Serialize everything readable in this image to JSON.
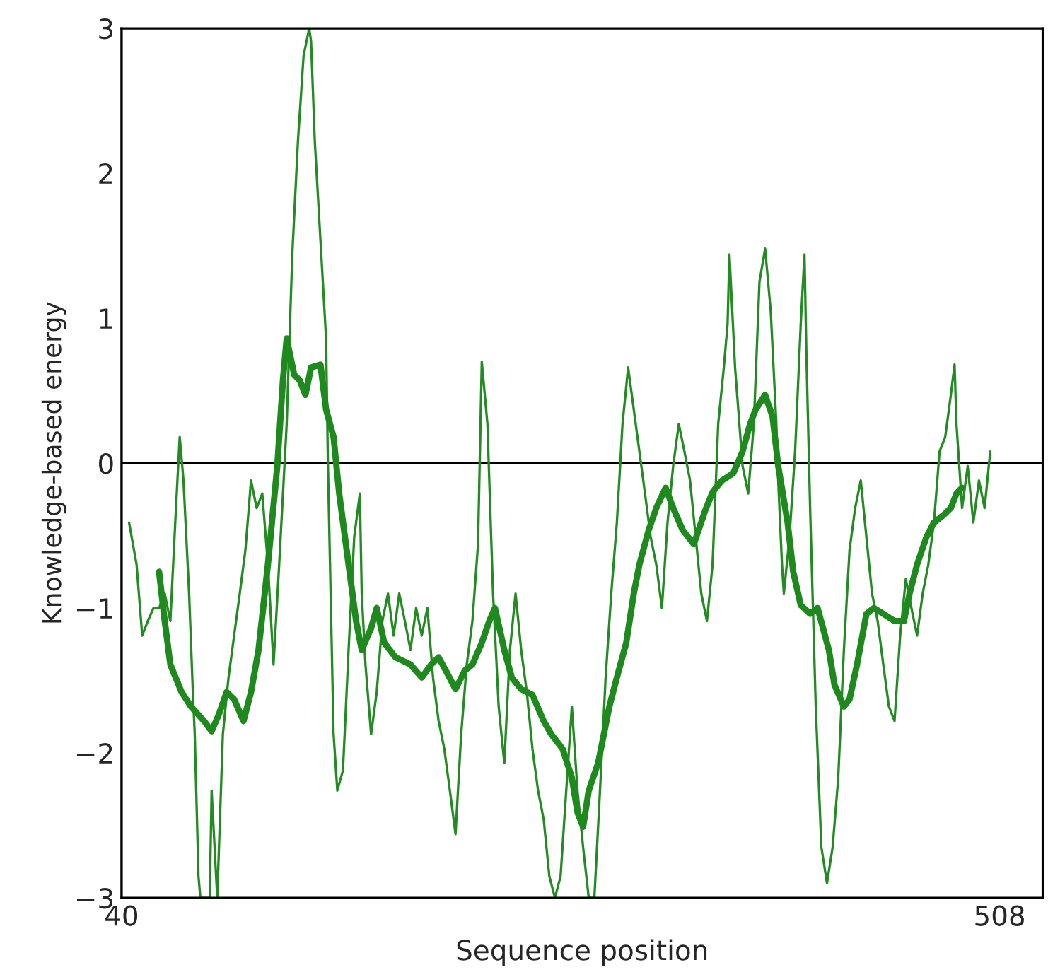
{
  "chart_data": {
    "type": "line",
    "xlabel": "Sequence position",
    "ylabel": "Knowledge-based energy",
    "xlim": [
      40,
      531
    ],
    "ylim": [
      -3,
      3
    ],
    "xticks": [
      40,
      508
    ],
    "yticks": [
      {
        "value": -3,
        "label": "−3"
      },
      {
        "value": -2,
        "label": "−2"
      },
      {
        "value": -1,
        "label": "−1"
      },
      0,
      1,
      2,
      3
    ],
    "grid": false,
    "marker": "none",
    "line_style": "solid",
    "ref_lines": [
      {
        "axis": "y",
        "value": 0,
        "color": "#000000"
      }
    ],
    "series": [
      {
        "color": "#228b22",
        "x": [
          44,
          48,
          51,
          54,
          57,
          60,
          63,
          66,
          69,
          71,
          73,
          76,
          78,
          79,
          81,
          82,
          87,
          88,
          91,
          94,
          97,
          100,
          103,
          106,
          109,
          112,
          115,
          118,
          121,
          124,
          128,
          131,
          134,
          137,
          140,
          141,
          143,
          146,
          149,
          150,
          153,
          155,
          158,
          161,
          164,
          167,
          168,
          170,
          173,
          176,
          179,
          182,
          185,
          188,
          191,
          194,
          197,
          200,
          203,
          206,
          209,
          212,
          215,
          218,
          221,
          224,
          227,
          230,
          232,
          235,
          238,
          241,
          244,
          247,
          250,
          253,
          256,
          259,
          262,
          265,
          268,
          271,
          274,
          277,
          280,
          283,
          286,
          289,
          292,
          295,
          298,
          301,
          304,
          307,
          310,
          313,
          316,
          319,
          322,
          325,
          328,
          331,
          334,
          337,
          340,
          343,
          346,
          349,
          352,
          355,
          358,
          361,
          363,
          364,
          367,
          371,
          374,
          377,
          380,
          383,
          386,
          389,
          390,
          392,
          393,
          396,
          399,
          402,
          404,
          405,
          407,
          410,
          413,
          416,
          419,
          422,
          425,
          428,
          431,
          434,
          437,
          440,
          443,
          446,
          449,
          452,
          455,
          458,
          461,
          464,
          467,
          470,
          473,
          476,
          479,
          482,
          484,
          485,
          488,
          491,
          494,
          497,
          500,
          503
        ],
        "values": [
          -0.41,
          -0.7,
          -1.19,
          -1.09,
          -1.0,
          -1.0,
          -0.9,
          -1.09,
          -0.31,
          0.18,
          -0.12,
          -0.9,
          -1.58,
          -1.87,
          -2.85,
          -3,
          -3,
          -2.26,
          -3,
          -1.87,
          -1.48,
          -1.19,
          -0.9,
          -0.6,
          -0.12,
          -0.31,
          -0.21,
          -0.7,
          -1.39,
          -0.7,
          0.27,
          1.44,
          2.22,
          2.81,
          3,
          2.91,
          2.22,
          1.54,
          0.86,
          -0.02,
          -1.87,
          -2.26,
          -2.12,
          -1.29,
          -0.51,
          -0.21,
          -0.9,
          -1.39,
          -1.87,
          -1.58,
          -1.09,
          -0.9,
          -1.19,
          -0.9,
          -1.09,
          -1.29,
          -1.0,
          -1.19,
          -1.0,
          -1.48,
          -1.78,
          -1.97,
          -2.26,
          -2.56,
          -1.87,
          -1.39,
          -1.09,
          -0.56,
          0.7,
          0.27,
          -0.9,
          -1.68,
          -2.07,
          -1.29,
          -0.9,
          -1.29,
          -1.58,
          -1.97,
          -2.26,
          -2.46,
          -2.85,
          -3,
          -2.85,
          -2.26,
          -1.68,
          -2.26,
          -2.65,
          -3,
          -3,
          -2.26,
          -1.48,
          -0.9,
          -0.41,
          0.27,
          0.66,
          0.37,
          0.08,
          -0.21,
          -0.51,
          -0.7,
          -1.0,
          -0.41,
          -0.02,
          0.27,
          0.08,
          -0.12,
          -0.51,
          -0.9,
          -1.09,
          -0.7,
          0.27,
          0.66,
          0.96,
          1.44,
          0.66,
          -0.02,
          -0.21,
          0.27,
          1.25,
          1.48,
          1.05,
          0.27,
          -0.12,
          -0.7,
          -0.9,
          -0.51,
          0.08,
          0.96,
          1.44,
          0.76,
          -0.31,
          -1.68,
          -2.65,
          -2.9,
          -2.65,
          -2.17,
          -1.29,
          -0.6,
          -0.31,
          -0.12,
          -0.51,
          -0.9,
          -1.09,
          -1.39,
          -1.68,
          -1.78,
          -1.19,
          -0.8,
          -1.0,
          -1.19,
          -0.9,
          -0.7,
          -0.41,
          0.08,
          0.18,
          0.47,
          0.68,
          0.27,
          -0.31,
          -0.02,
          -0.41,
          -0.12,
          -0.31,
          0.08
        ]
      },
      {
        "color": "#1e8a1e",
        "x": [
          60,
          63,
          66,
          72,
          77,
          84,
          88,
          92,
          96,
          100,
          105,
          109,
          113,
          118,
          123,
          126,
          128,
          132,
          135,
          138,
          141,
          146,
          149,
          153,
          156,
          161,
          165,
          168,
          173,
          176,
          180,
          186,
          194,
          200,
          205,
          209,
          214,
          218,
          223,
          227,
          232,
          236,
          239,
          244,
          248,
          253,
          259,
          265,
          269,
          275,
          280,
          283,
          286,
          289,
          294,
          300,
          304,
          309,
          313,
          316,
          321,
          325,
          330,
          334,
          339,
          345,
          351,
          355,
          360,
          366,
          371,
          375,
          378,
          383,
          387,
          390,
          395,
          398,
          402,
          407,
          411,
          417,
          420,
          425,
          428,
          432,
          437,
          441,
          446,
          452,
          457,
          460,
          464,
          469,
          473,
          478,
          482,
          485,
          488
        ],
        "values": [
          -0.75,
          -1.09,
          -1.39,
          -1.58,
          -1.68,
          -1.78,
          -1.85,
          -1.73,
          -1.58,
          -1.63,
          -1.78,
          -1.58,
          -1.29,
          -0.7,
          -0.02,
          0.57,
          0.86,
          0.61,
          0.57,
          0.47,
          0.66,
          0.68,
          0.37,
          0.18,
          -0.21,
          -0.7,
          -1.09,
          -1.29,
          -1.14,
          -1.0,
          -1.24,
          -1.34,
          -1.39,
          -1.48,
          -1.39,
          -1.34,
          -1.46,
          -1.56,
          -1.43,
          -1.39,
          -1.24,
          -1.09,
          -1.0,
          -1.29,
          -1.48,
          -1.56,
          -1.6,
          -1.78,
          -1.87,
          -1.97,
          -2.17,
          -2.41,
          -2.51,
          -2.26,
          -2.07,
          -1.68,
          -1.48,
          -1.24,
          -0.9,
          -0.7,
          -0.46,
          -0.31,
          -0.17,
          -0.31,
          -0.46,
          -0.56,
          -0.33,
          -0.2,
          -0.12,
          -0.07,
          0.08,
          0.27,
          0.37,
          0.47,
          0.32,
          -0.02,
          -0.41,
          -0.75,
          -0.98,
          -1.04,
          -1.0,
          -1.29,
          -1.53,
          -1.68,
          -1.63,
          -1.39,
          -1.04,
          -1.0,
          -1.04,
          -1.09,
          -1.09,
          -0.9,
          -0.7,
          -0.51,
          -0.41,
          -0.36,
          -0.31,
          -0.21,
          -0.17
        ]
      }
    ]
  }
}
